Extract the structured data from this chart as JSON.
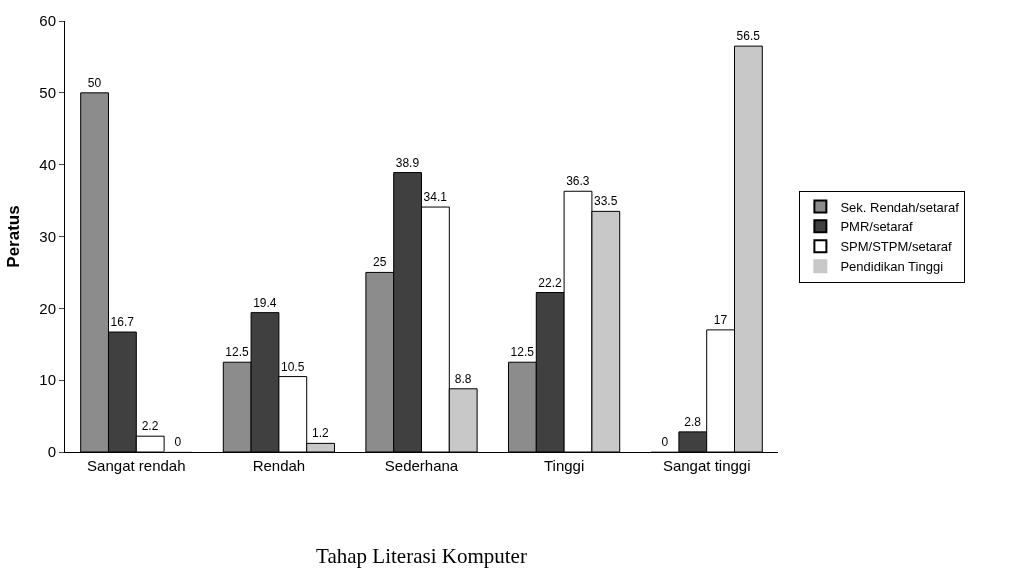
{
  "chart_data": {
    "type": "bar",
    "xlabel": "Tahap Literasi Komputer",
    "ylabel": "Peratus",
    "categories": [
      "Sangat rendah",
      "Rendah",
      "Sederhana",
      "Tinggi",
      "Sangat tinggi"
    ],
    "series": [
      {
        "name": "Sek. Rendah/setaraf",
        "color": "#8c8c8c",
        "values": [
          50,
          12.5,
          25,
          12.5,
          0
        ]
      },
      {
        "name": "PMR/setaraf",
        "color": "#404040",
        "values": [
          16.7,
          19.4,
          38.9,
          22.2,
          2.8
        ]
      },
      {
        "name": "SPM/STPM/setaraf",
        "color": "#ffffff",
        "values": [
          2.2,
          10.5,
          34.1,
          36.3,
          17
        ]
      },
      {
        "name": "Pendidikan Tinggi",
        "color": "#c8c8c8",
        "values": [
          0,
          1.2,
          8.8,
          33.5,
          56.5
        ]
      }
    ],
    "ylim": [
      0,
      60
    ],
    "yticks": [
      0,
      10,
      20,
      30,
      40,
      50,
      60
    ],
    "legend": "right",
    "data_labels": true
  }
}
